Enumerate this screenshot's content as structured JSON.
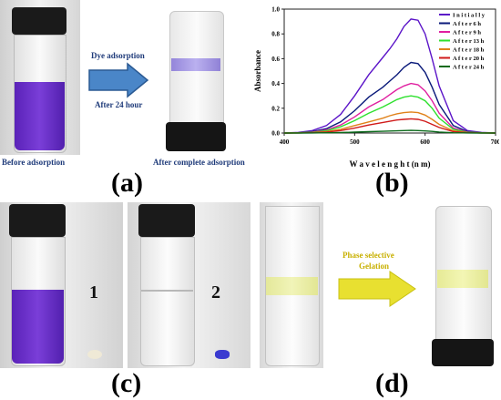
{
  "panel_a": {
    "label": "(a)",
    "arrow_top": "Dye adsorption",
    "arrow_bottom": "After 24 hour",
    "caption_left": "Before adsorption",
    "caption_right": "After complete adsorption"
  },
  "panel_b": {
    "label": "(b)"
  },
  "panel_c": {
    "label": "(c)",
    "vial1_number": "1",
    "vial2_number": "2"
  },
  "panel_d": {
    "label": "(d)",
    "arrow_text_line1": "Phase selective",
    "arrow_text_line2": "Gelation"
  },
  "colors": {
    "dye_purple": "#6a2fc8",
    "caption_blue": "#1f3b7a",
    "arrow_blue": "#4a86c8",
    "arrow_yellow": "#e8e030",
    "gel_yellow": "#eef09a"
  },
  "chart_data": {
    "type": "line",
    "xlabel": "W a v e l e n g h t  (n m)",
    "ylabel": "Absorbance",
    "xlim": [
      400,
      700
    ],
    "ylim": [
      0,
      1.0
    ],
    "xticks": [
      "400",
      "500",
      "600",
      "700"
    ],
    "yticks": [
      "0.0",
      "0.2",
      "0.4",
      "0.6",
      "0.8",
      "1.0"
    ],
    "legend_position": "top-right",
    "x": [
      400,
      420,
      440,
      460,
      480,
      500,
      520,
      540,
      550,
      560,
      570,
      580,
      590,
      600,
      610,
      620,
      640,
      660,
      680,
      700
    ],
    "series": [
      {
        "name": "I n i t i a l l y",
        "color": "#5b14c8",
        "values": [
          0.0,
          0.005,
          0.02,
          0.06,
          0.15,
          0.3,
          0.47,
          0.61,
          0.68,
          0.76,
          0.86,
          0.92,
          0.91,
          0.8,
          0.6,
          0.38,
          0.1,
          0.02,
          0.005,
          0.0
        ]
      },
      {
        "name": "A f t e r  6  h",
        "color": "#0a1a7a",
        "values": [
          0.0,
          0.003,
          0.012,
          0.035,
          0.09,
          0.18,
          0.29,
          0.37,
          0.42,
          0.47,
          0.53,
          0.57,
          0.56,
          0.49,
          0.37,
          0.23,
          0.06,
          0.012,
          0.003,
          0.0
        ]
      },
      {
        "name": "A f t e r  9  h",
        "color": "#e01fa0",
        "values": [
          0.0,
          0.002,
          0.008,
          0.025,
          0.065,
          0.13,
          0.21,
          0.27,
          0.31,
          0.35,
          0.38,
          0.4,
          0.39,
          0.34,
          0.26,
          0.16,
          0.04,
          0.008,
          0.002,
          0.0
        ]
      },
      {
        "name": "A f t e r  13  h",
        "color": "#2ee02e",
        "values": [
          0.0,
          0.002,
          0.006,
          0.019,
          0.05,
          0.1,
          0.16,
          0.21,
          0.24,
          0.27,
          0.29,
          0.3,
          0.29,
          0.26,
          0.2,
          0.12,
          0.03,
          0.006,
          0.002,
          0.0
        ]
      },
      {
        "name": "A f t e r  18  h",
        "color": "#e0821a",
        "values": [
          0.0,
          0.001,
          0.004,
          0.011,
          0.03,
          0.06,
          0.09,
          0.12,
          0.14,
          0.155,
          0.165,
          0.17,
          0.165,
          0.145,
          0.11,
          0.07,
          0.018,
          0.004,
          0.001,
          0.0
        ]
      },
      {
        "name": "A f t e r  20  h",
        "color": "#d01a1a",
        "values": [
          0.0,
          0.001,
          0.003,
          0.008,
          0.02,
          0.04,
          0.065,
          0.085,
          0.095,
          0.105,
          0.11,
          0.115,
          0.11,
          0.095,
          0.07,
          0.045,
          0.012,
          0.003,
          0.001,
          0.0
        ]
      },
      {
        "name": "A f t e r  24  h",
        "color": "#0a6a1a",
        "values": [
          0.0,
          0.0,
          0.001,
          0.002,
          0.004,
          0.007,
          0.011,
          0.014,
          0.016,
          0.018,
          0.02,
          0.021,
          0.02,
          0.017,
          0.013,
          0.008,
          0.002,
          0.001,
          0.0,
          0.0
        ]
      }
    ]
  }
}
